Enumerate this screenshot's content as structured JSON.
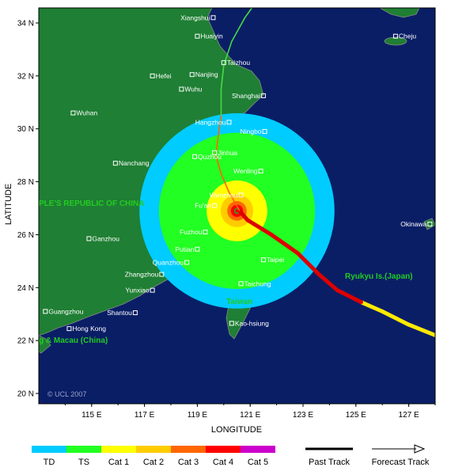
{
  "map": {
    "x_label": "LONGITUDE",
    "y_label": "LATITUDE",
    "lon_ticks": [
      "115 E",
      "117 E",
      "119 E",
      "121 E",
      "123 E",
      "125 E",
      "127 E"
    ],
    "lat_ticks": [
      "34 N",
      "32 N",
      "30 N",
      "28 N",
      "26 N",
      "24 N",
      "22 N",
      "20 N"
    ],
    "copyright": "© UCL 2007",
    "country_label": "PLE'S REPUBLIC OF CHINA",
    "hk_label": "g & Macau (China)",
    "taiwan_label": "Taiwan",
    "ryukyu_label": "Ryukyu Is.(Japan)",
    "storm_center": {
      "lon": 120.5,
      "lat": 26.9
    },
    "wind_radii_deg": {
      "TD": 4.5,
      "TS": 3.6,
      "Cat1": 1.4,
      "Cat2": 0.75,
      "Cat3": 0.45,
      "Cat4": 0.28
    }
  },
  "cities": [
    {
      "name": "Xiangshui",
      "lon": 119.6,
      "lat": 34.2
    },
    {
      "name": "Huaiyin",
      "lon": 119.0,
      "lat": 33.5
    },
    {
      "name": "Cheju",
      "lon": 126.5,
      "lat": 33.5
    },
    {
      "name": "Taizhou",
      "lon": 120.0,
      "lat": 32.5
    },
    {
      "name": "Hefei",
      "lon": 117.3,
      "lat": 32.0
    },
    {
      "name": "Nanjing",
      "lon": 118.8,
      "lat": 32.05
    },
    {
      "name": "Wuhu",
      "lon": 118.4,
      "lat": 31.5
    },
    {
      "name": "Shanghai",
      "lon": 121.5,
      "lat": 31.25
    },
    {
      "name": "Wuhan",
      "lon": 114.3,
      "lat": 30.6
    },
    {
      "name": "Hangzhou",
      "lon": 120.2,
      "lat": 30.25
    },
    {
      "name": "Ningbo",
      "lon": 121.55,
      "lat": 29.9
    },
    {
      "name": "Jinhua",
      "lon": 119.65,
      "lat": 29.1
    },
    {
      "name": "Quzhou",
      "lon": 118.9,
      "lat": 28.95
    },
    {
      "name": "Nanchang",
      "lon": 115.9,
      "lat": 28.7
    },
    {
      "name": "Wenling",
      "lon": 121.4,
      "lat": 28.4
    },
    {
      "name": "Wenzhou",
      "lon": 120.65,
      "lat": 27.5
    },
    {
      "name": "Fu'an",
      "lon": 119.65,
      "lat": 27.1
    },
    {
      "name": "Okinawa",
      "lon": 127.8,
      "lat": 26.4
    },
    {
      "name": "Ganzhou",
      "lon": 114.9,
      "lat": 25.85
    },
    {
      "name": "Fuzhou",
      "lon": 119.3,
      "lat": 26.1
    },
    {
      "name": "Putian",
      "lon": 119.0,
      "lat": 25.45
    },
    {
      "name": "Taipei",
      "lon": 121.5,
      "lat": 25.05
    },
    {
      "name": "Quanzhou",
      "lon": 118.6,
      "lat": 24.95
    },
    {
      "name": "Zhangzhou",
      "lon": 117.65,
      "lat": 24.5
    },
    {
      "name": "Taichung",
      "lon": 120.65,
      "lat": 24.15
    },
    {
      "name": "Yunxiao",
      "lon": 117.3,
      "lat": 23.9
    },
    {
      "name": "Guangzhou",
      "lon": 113.25,
      "lat": 23.1
    },
    {
      "name": "Shantou",
      "lon": 116.65,
      "lat": 23.05
    },
    {
      "name": "Hong Kong",
      "lon": 114.15,
      "lat": 22.45
    },
    {
      "name": "Kao-hsiung",
      "lon": 120.3,
      "lat": 22.65
    }
  ],
  "track": {
    "past": [
      [
        128.0,
        22.2
      ],
      [
        127.0,
        22.6
      ],
      [
        126.0,
        23.1
      ],
      [
        125.2,
        23.45
      ],
      [
        124.3,
        23.9
      ],
      [
        123.6,
        24.5
      ],
      [
        122.8,
        25.3
      ],
      [
        121.8,
        26.0
      ],
      [
        120.9,
        26.55
      ],
      [
        120.6,
        26.9
      ]
    ],
    "past_colors": [
      "#ffea00",
      "#ffea00",
      "#ffea00",
      "#dd0000",
      "#dd0000",
      "#dd0000",
      "#dd0000",
      "#dd0000",
      "#dd0000"
    ],
    "inland": [
      [
        120.6,
        26.9
      ],
      [
        120.2,
        27.6
      ],
      [
        119.9,
        28.3
      ],
      [
        119.7,
        29.0
      ],
      [
        119.8,
        29.8
      ],
      [
        119.9,
        30.5
      ]
    ],
    "inland_color": "#ff6600",
    "future": [
      [
        119.9,
        30.5
      ],
      [
        119.9,
        31.5
      ],
      [
        120.0,
        32.4
      ],
      [
        120.3,
        33.3
      ],
      [
        120.8,
        34.2
      ],
      [
        121.3,
        34.9
      ]
    ],
    "future_color": "#44dd44"
  },
  "legend": {
    "categories": [
      {
        "label": "TD",
        "color": "#00ccff"
      },
      {
        "label": "TS",
        "color": "#22ff22"
      },
      {
        "label": "Cat 1",
        "color": "#ffff00"
      },
      {
        "label": "Cat 2",
        "color": "#ffcc00"
      },
      {
        "label": "Cat 3",
        "color": "#ff6600"
      },
      {
        "label": "Cat 4",
        "color": "#ff0000"
      },
      {
        "label": "Cat 5",
        "color": "#cc00cc"
      }
    ],
    "past_track_label": "Past Track",
    "forecast_track_label": "Forecast Track"
  },
  "colors": {
    "ocean": "#0a1e66",
    "land": "#1f7f34",
    "border": "#888888"
  }
}
